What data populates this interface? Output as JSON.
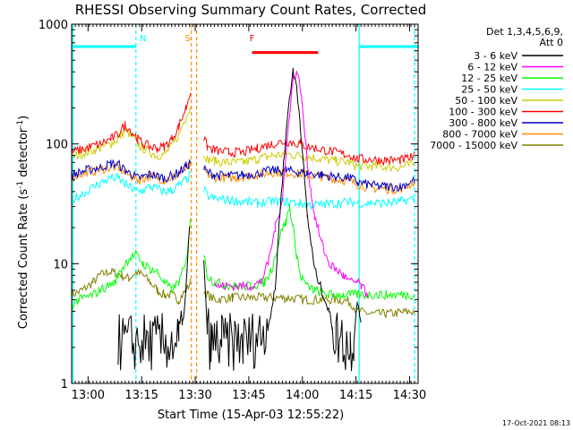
{
  "chart_data": {
    "type": "line",
    "title": "RHESSI Observing Summary Count Rates, Corrected",
    "xlabel": "Start Time (15-Apr-03 12:55:22)",
    "ylabel_main": "Corrected Count Rate (s",
    "ylabel_sup1": "-1",
    "ylabel_mid": " detector",
    "ylabel_sup2": "-1",
    "ylabel_end": ")",
    "y_scale": "log",
    "ylim": [
      1,
      1000
    ],
    "y_ticks": [
      {
        "v": 1,
        "label": "1"
      },
      {
        "v": 10,
        "label": "10"
      },
      {
        "v": 100,
        "label": "100"
      },
      {
        "v": 1000,
        "label": "1000"
      }
    ],
    "xlim_minutes": [
      0,
      97
    ],
    "x_ticks": [
      {
        "m": 4.6,
        "label": "13:00"
      },
      {
        "m": 19.6,
        "label": "13:15"
      },
      {
        "m": 34.6,
        "label": "13:30"
      },
      {
        "m": 49.6,
        "label": "13:45"
      },
      {
        "m": 64.6,
        "label": "14:00"
      },
      {
        "m": 79.6,
        "label": "14:15"
      },
      {
        "m": 94.6,
        "label": "14:30"
      }
    ],
    "legend_header": [
      "Det 1,3,4,5,6,9,",
      "Att 0"
    ],
    "legend_position": "right",
    "timestamp": "17-Oct-2021 08:13",
    "annotations": [
      {
        "text": "N",
        "m": 20.0,
        "color": "#00ffff",
        "bar": [
          [
            0,
            18
          ],
          [
            80.5,
            97
          ]
        ],
        "bar_y": 650
      },
      {
        "text": "S",
        "m": 32.5,
        "color": "#ff8c00"
      },
      {
        "text": "F",
        "m": 50.5,
        "color": "#ff0000",
        "bar": [
          [
            50.5,
            69
          ]
        ],
        "bar_y": 580
      }
    ],
    "vertical_lines": [
      {
        "m": 0.3,
        "color": "#00ffff",
        "style": "solid"
      },
      {
        "m": 18.0,
        "color": "#00ffff",
        "style": "dashed"
      },
      {
        "m": 33.5,
        "color": "#ff8c00",
        "style": "dashed"
      },
      {
        "m": 35.0,
        "color": "#ff8c00",
        "style": "dashed"
      },
      {
        "m": 80.5,
        "color": "#00ffff",
        "style": "solid"
      },
      {
        "m": 96.0,
        "color": "#00ffff",
        "style": "dashed"
      }
    ],
    "series": [
      {
        "name": "3 - 6 keV",
        "color": "#000000",
        "x": [
          0,
          13,
          13.01,
          30,
          31,
          32,
          33,
          33.5,
          37,
          38,
          39,
          40,
          42,
          48,
          52,
          55,
          57,
          58,
          59,
          60,
          61,
          62,
          63,
          64,
          65,
          66,
          67,
          68,
          70,
          72,
          73,
          74,
          78,
          79,
          80,
          81,
          81.01,
          97
        ],
        "y": [
          null,
          null,
          2.2,
          2.2,
          3,
          6,
          20,
          null,
          10,
          3,
          2,
          2.2,
          2.2,
          2.2,
          2.4,
          3,
          6,
          20,
          50,
          120,
          250,
          400,
          300,
          150,
          60,
          25,
          15,
          9,
          6,
          4,
          3,
          2.5,
          2,
          2.5,
          5,
          3,
          null,
          null
        ]
      },
      {
        "name": "6 - 12 keV",
        "color": "#ff00ff",
        "x": [
          40,
          41,
          45,
          50,
          53,
          55,
          57,
          59,
          60,
          61,
          62,
          63,
          64,
          65,
          66,
          67,
          68,
          70,
          72,
          74,
          76,
          78,
          80,
          81,
          82,
          83
        ],
        "y": [
          7,
          6.5,
          6.5,
          6.5,
          7,
          10,
          20,
          35,
          80,
          180,
          350,
          400,
          300,
          150,
          70,
          40,
          25,
          15,
          10,
          9,
          8,
          7,
          7,
          6.5,
          6,
          5.5
        ]
      },
      {
        "name": "12 - 25 keV",
        "color": "#00ff00",
        "x": [
          0,
          2,
          6,
          8,
          12,
          14,
          16,
          18,
          20,
          22,
          24,
          26,
          28,
          30,
          32,
          33.3,
          33.6,
          37,
          38,
          40,
          45,
          50,
          54,
          56,
          58,
          59,
          60,
          61,
          62,
          63,
          64,
          66,
          68,
          72,
          76,
          80,
          84,
          88,
          92,
          96
        ],
        "y": [
          4.5,
          5,
          5.5,
          6,
          7,
          9,
          11,
          12,
          10,
          9,
          8.5,
          7,
          6,
          7,
          10,
          25,
          null,
          12,
          8,
          7,
          6.5,
          6.5,
          7,
          9,
          15,
          20,
          22,
          30,
          20,
          12,
          8,
          6.5,
          6,
          5.5,
          5.5,
          5.5,
          5.5,
          5.5,
          5.5,
          5.5
        ]
      },
      {
        "name": "25 - 50 keV",
        "color": "#00ffff",
        "x": [
          0,
          4,
          8,
          11,
          13,
          15,
          17,
          18.5,
          20,
          22,
          24,
          26,
          28,
          30,
          32,
          33.3,
          33.6,
          37,
          38,
          40,
          44,
          48,
          52,
          56,
          60,
          64,
          66,
          70,
          74,
          78,
          80,
          84,
          88,
          92,
          96
        ],
        "y": [
          34,
          40,
          47,
          52,
          52,
          46,
          42,
          40,
          41,
          44,
          42,
          40,
          41,
          45,
          50,
          55,
          null,
          42,
          37,
          35,
          34,
          33,
          32,
          33,
          33,
          32,
          31,
          31,
          32,
          33,
          32,
          32,
          32,
          33,
          35
        ]
      },
      {
        "name": "50 - 100 keV",
        "color": "#cccc00",
        "x": [
          0,
          4,
          8,
          11,
          13,
          15,
          17,
          18.5,
          20,
          22,
          24,
          26,
          28,
          30,
          32,
          33.3,
          33.6,
          37,
          38,
          40,
          44,
          48,
          52,
          56,
          60,
          64,
          66,
          70,
          74,
          78,
          80,
          84,
          88,
          92,
          96
        ],
        "y": [
          78,
          85,
          92,
          100,
          110,
          130,
          115,
          100,
          92,
          85,
          80,
          82,
          95,
          120,
          170,
          200,
          null,
          85,
          75,
          72,
          70,
          70,
          75,
          80,
          82,
          80,
          78,
          75,
          72,
          70,
          65,
          65,
          64,
          64,
          68
        ]
      },
      {
        "name": "100 - 300 keV",
        "color": "#ff0000",
        "x": [
          0,
          4,
          8,
          11,
          13,
          15,
          17,
          18.5,
          20,
          22,
          24,
          26,
          28,
          30,
          32,
          33.3,
          33.6,
          37,
          38,
          40,
          44,
          48,
          52,
          56,
          60,
          64,
          66,
          70,
          74,
          78,
          80,
          84,
          88,
          92,
          96
        ],
        "y": [
          85,
          92,
          100,
          110,
          120,
          145,
          125,
          110,
          100,
          95,
          92,
          95,
          110,
          140,
          200,
          280,
          null,
          110,
          95,
          88,
          85,
          85,
          92,
          100,
          105,
          100,
          95,
          90,
          85,
          80,
          75,
          74,
          73,
          73,
          78
        ]
      },
      {
        "name": "300 - 800 keV",
        "color": "#0000cc",
        "x": [
          0,
          4,
          8,
          11,
          13,
          15,
          17,
          18.5,
          20,
          22,
          24,
          26,
          28,
          30,
          32,
          33.3,
          33.6,
          37,
          38,
          40,
          44,
          48,
          52,
          56,
          60,
          64,
          66,
          70,
          74,
          78,
          80,
          84,
          88,
          92,
          96
        ],
        "y": [
          55,
          60,
          64,
          68,
          68,
          60,
          55,
          52,
          53,
          56,
          54,
          52,
          54,
          58,
          65,
          70,
          null,
          62,
          58,
          55,
          54,
          55,
          57,
          60,
          60,
          58,
          57,
          55,
          53,
          52,
          48,
          45,
          44,
          44,
          50
        ]
      },
      {
        "name": "800 - 7000 keV",
        "color": "#ff8c00",
        "x": [
          0,
          4,
          8,
          11,
          13,
          15,
          17,
          18.5,
          20,
          22,
          24,
          26,
          28,
          30,
          32,
          33.3,
          33.6,
          37,
          38,
          40,
          44,
          48,
          52,
          56,
          60,
          64,
          66,
          70,
          74,
          78,
          80,
          84,
          88,
          92,
          96
        ],
        "y": [
          53,
          58,
          61,
          64,
          64,
          57,
          53,
          50,
          51,
          54,
          52,
          50,
          52,
          56,
          62,
          66,
          null,
          60,
          56,
          53,
          52,
          53,
          55,
          58,
          58,
          56,
          55,
          53,
          51,
          49,
          46,
          43,
          42,
          42,
          48
        ]
      },
      {
        "name": "7000 - 15000 keV",
        "color": "#808000",
        "x": [
          0,
          3,
          6,
          8,
          10,
          12,
          14,
          16,
          18,
          20,
          22,
          24,
          26,
          28,
          30,
          32,
          33.3,
          33.6,
          37,
          38,
          40,
          45,
          50,
          55,
          60,
          65,
          70,
          75,
          78,
          80,
          84,
          88,
          92,
          96
        ],
        "y": [
          5.5,
          6,
          7,
          8,
          8.5,
          8.5,
          8,
          7.5,
          8.5,
          8,
          7,
          6,
          5.5,
          5.5,
          5,
          6,
          7,
          null,
          6,
          5.5,
          5,
          5.2,
          5.2,
          5.2,
          5.2,
          5,
          5,
          5,
          4.8,
          4,
          3.8,
          3.8,
          3.9,
          4
        ]
      }
    ]
  }
}
